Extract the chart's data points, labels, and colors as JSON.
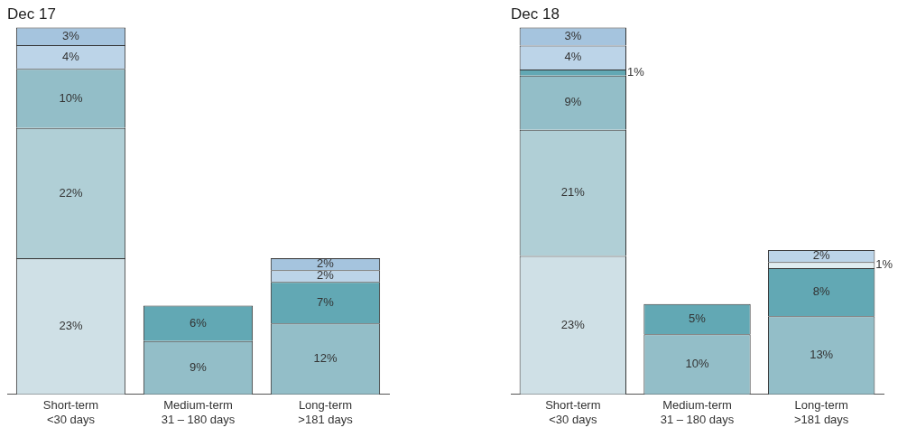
{
  "chart_data": [
    {
      "type": "bar",
      "title": "Dec 17",
      "stacked": true,
      "legend": false,
      "grid": false,
      "categories": [
        "Short-term\n<30 days",
        "Medium-term\n31 – 180 days",
        "Long-term\n>181 days"
      ],
      "series": [
        {
          "color": "#cfe0e6",
          "values": [
            23,
            null,
            null
          ],
          "value_labels": [
            "23%",
            null,
            null
          ]
        },
        {
          "color": "#b0cfd6",
          "values": [
            22,
            null,
            null
          ],
          "value_labels": [
            "22%",
            null,
            null
          ]
        },
        {
          "color": "#93bec8",
          "values": [
            10,
            9,
            12
          ],
          "value_labels": [
            "10%",
            "9%",
            "12%"
          ]
        },
        {
          "color": "#62a8b4",
          "values": [
            null,
            6,
            7
          ],
          "value_labels": [
            null,
            "6%",
            "7%"
          ]
        },
        {
          "color": "#bcd4e8",
          "values": [
            4,
            null,
            2
          ],
          "value_labels": [
            "4%",
            null,
            "2%"
          ]
        },
        {
          "color": "#a5c4de",
          "values": [
            3,
            null,
            2
          ],
          "value_labels": [
            "3%",
            null,
            "2%"
          ]
        }
      ]
    },
    {
      "type": "bar",
      "title": "Dec 18",
      "stacked": true,
      "legend": false,
      "grid": false,
      "categories": [
        "Short-term\n<30 days",
        "Medium-term\n31 – 180 days",
        "Long-term\n>181 days"
      ],
      "series": [
        {
          "color": "#cfe0e6",
          "values": [
            23,
            null,
            null
          ],
          "value_labels": [
            "23%",
            null,
            null
          ]
        },
        {
          "color": "#b0cfd6",
          "values": [
            21,
            null,
            null
          ],
          "value_labels": [
            "21%",
            null,
            null
          ]
        },
        {
          "color": "#93bec8",
          "values": [
            9,
            10,
            13
          ],
          "value_labels": [
            "9%",
            "10%",
            "13%"
          ]
        },
        {
          "color": "#62a8b4",
          "values": [
            1,
            5,
            8
          ],
          "value_labels": [
            "1%",
            "5%",
            "8%"
          ]
        },
        {
          "color": "#e0edf1",
          "values": [
            null,
            null,
            1
          ],
          "value_labels": [
            null,
            null,
            "1%"
          ]
        },
        {
          "color": "#bcd4e8",
          "values": [
            4,
            null,
            2
          ],
          "value_labels": [
            "4%",
            null,
            "2%"
          ]
        },
        {
          "color": "#a5c4de",
          "values": [
            3,
            null,
            null
          ],
          "value_labels": [
            "3%",
            null,
            null
          ]
        }
      ]
    }
  ]
}
